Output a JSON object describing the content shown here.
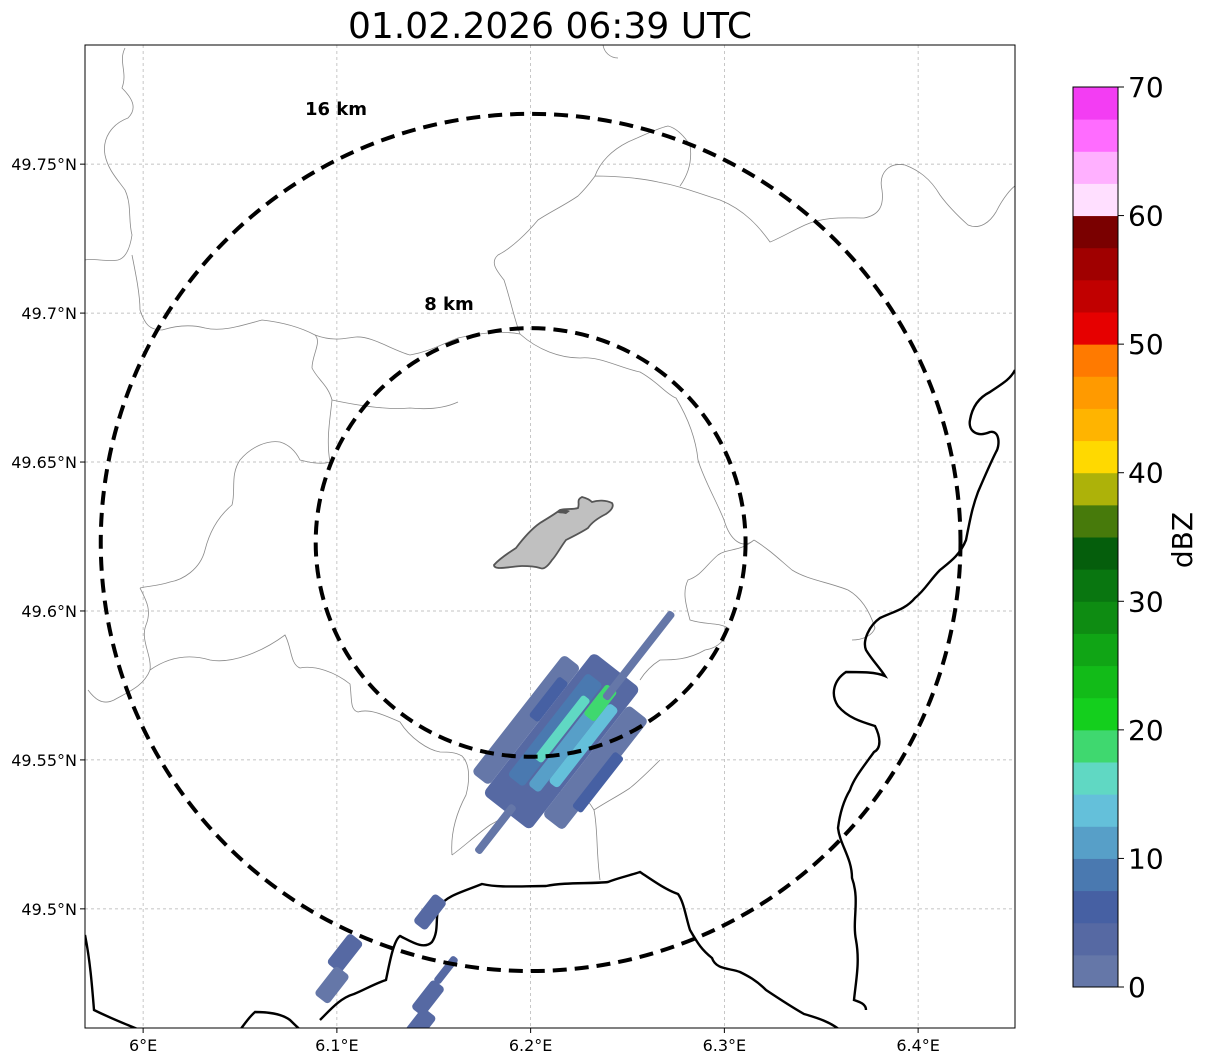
{
  "map": {
    "title": "01.02.2026 06:39 UTC",
    "lon_range": [
      5.97,
      6.45
    ],
    "lat_range": [
      49.46,
      49.79
    ],
    "radar_center": {
      "lon": 6.2,
      "lat": 49.623
    },
    "x_ticks": [
      {
        "value": 6.0,
        "label": "6°E"
      },
      {
        "value": 6.1,
        "label": "6.1°E"
      },
      {
        "value": 6.2,
        "label": "6.2°E"
      },
      {
        "value": 6.3,
        "label": "6.3°E"
      },
      {
        "value": 6.4,
        "label": "6.4°E"
      }
    ],
    "y_ticks": [
      {
        "value": 49.75,
        "label": "49.75°N"
      },
      {
        "value": 49.7,
        "label": "49.7°N"
      },
      {
        "value": 49.65,
        "label": "49.65°N"
      },
      {
        "value": 49.6,
        "label": "49.6°N"
      },
      {
        "value": 49.55,
        "label": "49.55°N"
      },
      {
        "value": 49.5,
        "label": "49.5°N"
      }
    ],
    "range_rings": [
      {
        "radius_km": 8,
        "label": "8 km"
      },
      {
        "radius_km": 16,
        "label": "16 km"
      }
    ]
  },
  "colorbar": {
    "label": "dBZ",
    "min": 0,
    "max": 70,
    "step": 2.5,
    "ticks": [
      {
        "value": 0,
        "label": "0"
      },
      {
        "value": 10,
        "label": "10"
      },
      {
        "value": 20,
        "label": "20"
      },
      {
        "value": 30,
        "label": "30"
      },
      {
        "value": 40,
        "label": "40"
      },
      {
        "value": 50,
        "label": "50"
      },
      {
        "value": 60,
        "label": "60"
      },
      {
        "value": 70,
        "label": "70"
      }
    ],
    "colors": [
      "#6577a8",
      "#5669a3",
      "#4660a3",
      "#4a79b0",
      "#579fc8",
      "#64c0da",
      "#60d8c3",
      "#3fd86f",
      "#14cf1d",
      "#12bb18",
      "#10a515",
      "#0e8c12",
      "#097610",
      "#055e0c",
      "#477a0b",
      "#adb209",
      "#ffd900",
      "#ffb400",
      "#ff9a00",
      "#ff7a00",
      "#e60000",
      "#c10000",
      "#a00000",
      "#7a0000",
      "#ffdfff",
      "#ffb0ff",
      "#ff6cff",
      "#f33df3"
    ]
  },
  "colors": {
    "grid": "#b0b0b0",
    "rings": "#000000",
    "city_fill": "#c0c0c0",
    "boundary_thin": "#8a8a8a",
    "border_thick": "#000000"
  }
}
